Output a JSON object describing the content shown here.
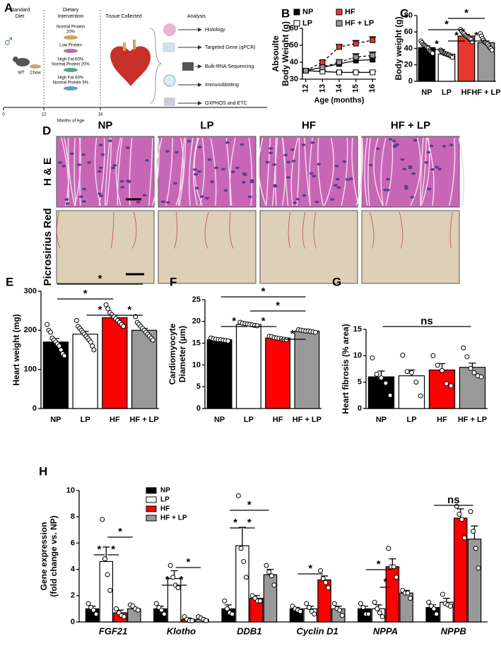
{
  "panel_a": {
    "label": "A",
    "headings": [
      [
        "Standard",
        "Diet"
      ],
      [
        "Dietary",
        "Intervention"
      ],
      [
        "Tissue Collected"
      ],
      [
        "Analysis"
      ]
    ],
    "sex": "♂",
    "mouse_labels": [
      "WT",
      "Chow"
    ],
    "diets": [
      [
        "Normal Protein",
        "20%"
      ],
      [
        "Low Protein"
      ],
      [
        "High Fat 60%",
        "Normal Protein 20%"
      ],
      [
        "High Fat 60%",
        "Normal Protein 5%"
      ]
    ],
    "analyses": [
      "Histology",
      "Targeted Gene (qPCR)",
      "Bulk-RNA Sequencing",
      "Immunoblotting",
      "OXPHOS and ETC"
    ],
    "timeline_ticks": [
      0,
      12,
      16
    ],
    "timeline_label": "Months of Age"
  },
  "panel_d": {
    "label": "D",
    "columns": [
      "NP",
      "LP",
      "HF",
      "HF + LP"
    ],
    "rows": [
      "H & E",
      "Picrosirius Red"
    ]
  },
  "chart_data": [
    {
      "panel": "B",
      "type": "line",
      "ylabel": [
        "Absoulte",
        "Body Weight (g)"
      ],
      "xlabel": "Age (months)",
      "x": [
        12,
        13,
        14,
        15,
        16
      ],
      "xlim": [
        11.8,
        16.2
      ],
      "xticks": [
        12,
        13,
        14,
        15,
        16
      ],
      "ylim": [
        30,
        60
      ],
      "yticks": [
        30,
        40,
        50,
        60
      ],
      "series": [
        {
          "name": "NP",
          "color": "#000000",
          "marker_fill": "#000000",
          "dashed": false,
          "values": [
            35,
            37,
            39,
            41,
            41.5
          ],
          "errors": [
            1,
            1,
            1.2,
            1.5,
            1.5
          ]
        },
        {
          "name": "LP",
          "color": "#000000",
          "marker_fill": "#ffffff",
          "dashed": false,
          "values": [
            35,
            34.5,
            34,
            34,
            34
          ],
          "errors": [
            0.5,
            0.5,
            0.5,
            0.5,
            0.5
          ]
        },
        {
          "name": "HF",
          "color": "#000000",
          "marker_fill": "#e8372d",
          "dashed": true,
          "values": [
            35,
            40,
            49,
            51,
            53
          ],
          "errors": [
            0.8,
            1,
            1.5,
            1.8,
            2
          ]
        },
        {
          "name": "HF + LP",
          "color": "#000000",
          "marker_fill": "#999999",
          "dashed": true,
          "values": [
            35,
            37,
            40,
            43,
            44
          ],
          "errors": [
            0.8,
            1,
            1.5,
            2,
            2
          ]
        }
      ]
    },
    {
      "panel": "C",
      "type": "bar",
      "ylabel": [
        "Body weight (g)"
      ],
      "categories": [
        "NP",
        "LP",
        "HF",
        "HF + LP"
      ],
      "values": [
        41,
        33,
        55,
        47
      ],
      "errors": [
        2,
        1,
        2,
        2
      ],
      "colors": [
        "#000000",
        "#ffffff",
        "#e8372d",
        "#999999"
      ],
      "points": [
        [
          49,
          47,
          45,
          44,
          43,
          42,
          41,
          40,
          38,
          36,
          35,
          34
        ],
        [
          38,
          36,
          35,
          34,
          34,
          33,
          33,
          32,
          32,
          31,
          30,
          29
        ],
        [
          63,
          61,
          59,
          58,
          56,
          55,
          54,
          53,
          52,
          51,
          48
        ],
        [
          58,
          55,
          52,
          50,
          48,
          47,
          46,
          45,
          43,
          41,
          40,
          38
        ]
      ],
      "ylim": [
        0,
        80
      ],
      "yticks": [
        0,
        20,
        40,
        60,
        80
      ],
      "annotations": [
        "*",
        "*",
        "*",
        "*",
        "*"
      ]
    },
    {
      "panel": "E",
      "type": "bar",
      "ylabel": [
        "Heart weight (mg)"
      ],
      "categories": [
        "NP",
        "LP",
        "HF",
        "HF + LP"
      ],
      "values": [
        170,
        190,
        232,
        200
      ],
      "errors": [
        9,
        7,
        6,
        5
      ],
      "colors": [
        "#000000",
        "#ffffff",
        "#ff0000",
        "#999999"
      ],
      "points": [
        [
          215,
          200,
          195,
          180,
          175,
          170,
          165,
          160,
          150,
          140,
          135
        ],
        [
          225,
          210,
          205,
          200,
          195,
          190,
          185,
          180,
          175,
          170,
          160,
          150
        ],
        [
          265,
          255,
          245,
          240,
          235,
          230,
          225,
          220,
          215,
          210
        ],
        [
          235,
          220,
          215,
          210,
          205,
          200,
          195,
          190,
          185,
          180,
          175
        ]
      ],
      "ylim": [
        0,
        300
      ],
      "yticks": [
        0,
        100,
        200,
        300
      ],
      "annotations": [
        "*",
        "*",
        "*",
        "*"
      ]
    },
    {
      "panel": "F",
      "type": "bar",
      "ylabel": [
        "Cardiomyocyte",
        "Diameter (µm)"
      ],
      "categories": [
        "NP",
        "LP",
        "HF",
        "HF + LP"
      ],
      "values": [
        15.8,
        19.3,
        16.2,
        17.8
      ],
      "errors": [
        0.2,
        0.2,
        0.2,
        0.2
      ],
      "colors": [
        "#000000",
        "#ffffff",
        "#ff0000",
        "#999999"
      ],
      "points": [
        [
          16.2,
          16.0,
          15.9,
          15.8,
          15.8,
          15.7,
          15.6,
          15.5
        ],
        [
          19.8,
          19.6,
          19.5,
          19.4,
          19.3,
          19.2,
          19.1,
          19.0
        ],
        [
          16.6,
          16.5,
          16.3,
          16.2,
          16.1,
          16.0,
          15.9,
          15.8
        ],
        [
          18.1,
          18.0,
          17.9,
          17.8,
          17.8,
          17.7,
          17.6,
          17.5
        ]
      ],
      "ylim": [
        0,
        25
      ],
      "yticks": [
        0,
        5,
        10,
        15,
        20,
        25
      ],
      "annotations": [
        "*",
        "*",
        "*",
        "*",
        "*"
      ]
    },
    {
      "panel": "G",
      "type": "bar",
      "ylabel": [
        "Heart fibrosis (% area)"
      ],
      "categories": [
        "NP",
        "LP",
        "HF",
        "HF + LP"
      ],
      "values": [
        6.0,
        6.2,
        7.3,
        7.8
      ],
      "errors": [
        1.1,
        1.1,
        1.2,
        0.8
      ],
      "colors": [
        "#000000",
        "#ffffff",
        "#ff0000",
        "#999999"
      ],
      "points": [
        [
          9.6,
          6.5,
          5.8,
          4.8,
          2.5
        ],
        [
          10.1,
          7.0,
          6.8,
          5.0,
          2.4
        ],
        [
          10.0,
          8.2,
          7.2,
          4.7,
          4.3
        ],
        [
          11.5,
          9.8,
          7.6,
          6.8,
          6.2,
          6.0
        ]
      ],
      "ylim": [
        0,
        15
      ],
      "yticks": [
        0,
        5,
        10,
        15
      ],
      "annotations": [
        "ns"
      ]
    },
    {
      "panel": "H",
      "type": "grouped_bar",
      "ylabel": [
        "Gene expression",
        "(fold change vs. NP)"
      ],
      "legend": "upper left",
      "categories": [
        "FGF21",
        "Klotho",
        "DDB1",
        "Cyclin D1",
        "NPPA",
        "NPPB"
      ],
      "ylim": [
        0,
        10
      ],
      "yticks": [
        0,
        2,
        4,
        6,
        8,
        10
      ],
      "series": [
        {
          "name": "NP",
          "color": "#000000",
          "values": [
            1.0,
            1.0,
            1.0,
            1.0,
            1.0,
            1.1
          ],
          "errors": [
            0.2,
            0.2,
            0.3,
            0.1,
            0.2,
            0.2
          ],
          "points": [
            [
              1.4,
              1.1,
              0.9,
              0.6
            ],
            [
              1.4,
              1.1,
              0.9,
              0.6
            ],
            [
              1.6,
              1.0,
              0.7,
              0.6
            ],
            [
              1.2,
              1.0,
              0.9,
              0.8
            ],
            [
              1.4,
              1.1,
              0.6,
              0.6
            ],
            [
              1.5,
              1.2,
              1.0,
              0.6
            ]
          ]
        },
        {
          "name": "LP",
          "color": "#ffffff",
          "values": [
            4.6,
            3.3,
            5.8,
            1.0,
            1.0,
            1.5
          ],
          "errors": [
            1.1,
            0.6,
            1.4,
            0.2,
            0.3,
            0.3
          ],
          "points": [
            [
              7.8,
              4.8,
              3.6,
              2.4
            ],
            [
              4.3,
              3.4,
              2.8,
              2.6
            ],
            [
              9.6,
              5.6,
              4.6,
              3.4
            ],
            [
              1.4,
              1.1,
              0.8,
              0.6
            ],
            [
              1.5,
              1.0,
              0.7,
              0.4
            ],
            [
              2.1,
              1.4,
              1.3,
              1.2
            ]
          ]
        },
        {
          "name": "HF",
          "color": "#ff0000",
          "values": [
            0.7,
            0.2,
            1.8,
            3.2,
            4.2,
            7.9
          ],
          "errors": [
            0.2,
            0.1,
            0.2,
            0.3,
            0.6,
            0.7
          ],
          "points": [
            [
              1.0,
              0.7,
              0.5,
              0.4
            ],
            [
              0.4,
              0.2,
              0.1,
              0.1
            ],
            [
              2.0,
              1.8,
              1.6,
              1.6
            ],
            [
              3.9,
              3.3,
              3.0,
              2.6
            ],
            [
              5.6,
              4.2,
              4.2,
              3.4
            ],
            [
              8.8,
              8.2,
              7.8,
              6.4
            ]
          ]
        },
        {
          "name": "HF + LP",
          "color": "#999999",
          "values": [
            1.0,
            0.2,
            3.6,
            1.0,
            2.2,
            6.3
          ],
          "errors": [
            0.1,
            0.1,
            0.4,
            0.2,
            0.2,
            1.0
          ],
          "points": [
            [
              1.3,
              1.2,
              1.0,
              0.9
            ],
            [
              0.4,
              0.3,
              0.2,
              0.1
            ],
            [
              4.3,
              3.8,
              3.5,
              2.8
            ],
            [
              1.4,
              1.0,
              0.9,
              0.5
            ],
            [
              2.4,
              2.2,
              2.2,
              1.8
            ],
            [
              8.4,
              6.9,
              5.6,
              4.1
            ]
          ]
        }
      ],
      "annotations": [
        "*",
        "*",
        "*",
        "*",
        "*",
        "*",
        "*",
        "*",
        "*",
        "*",
        "*",
        "*",
        "ns"
      ]
    }
  ]
}
